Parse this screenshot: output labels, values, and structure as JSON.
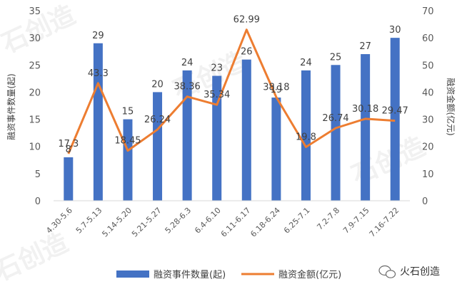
{
  "chart_data": {
    "type": "bar+line",
    "categories": [
      "4.30-5.6",
      "5.7-5.13",
      "5.14-5.20",
      "5.21-5.27",
      "5.28-6.3",
      "6.4-6.10",
      "6.11-6.17",
      "6.18-6.24",
      "6.25-7.1",
      "7.2-7.8",
      "7.9-7.15",
      "7.16-7.22"
    ],
    "series": [
      {
        "name": "融资事件数量(起)",
        "type": "bar",
        "axis": "left",
        "color": "#4472C4",
        "values": [
          8,
          29,
          15,
          20,
          24,
          23,
          26,
          19,
          24,
          25,
          27,
          30
        ],
        "labels": [
          "8",
          "29",
          "15",
          "20",
          "24",
          "23",
          "26",
          "19",
          "24",
          "25",
          "27",
          "30"
        ]
      },
      {
        "name": "融资金额(亿元)",
        "type": "line",
        "axis": "right",
        "color": "#ED7D31",
        "values": [
          17.3,
          43.3,
          18.45,
          26.24,
          38.36,
          35.34,
          62.99,
          38.18,
          19.8,
          26.74,
          30.18,
          29.47
        ],
        "labels": [
          "17.3",
          "43.3",
          "18.45",
          "26.24",
          "38.36",
          "35.34",
          "62.99",
          "38.18",
          "19.8",
          "26.74",
          "30.18",
          "29.47"
        ]
      }
    ],
    "ylabel_left": "融资事件数量(起)",
    "ylabel_right": "融资金额(亿元)",
    "ylim_left": [
      0,
      35
    ],
    "ylim_right": [
      0,
      70
    ],
    "yticks_left": [
      "0",
      "5",
      "10",
      "15",
      "20",
      "25",
      "30",
      "35"
    ],
    "yticks_right": [
      "0",
      "10",
      "20",
      "30",
      "40",
      "50",
      "60",
      "70"
    ],
    "grid": false,
    "legend_position": "bottom"
  },
  "brand": {
    "name": "火石创造",
    "icon": "wechat-icon"
  },
  "watermark": "石创造"
}
